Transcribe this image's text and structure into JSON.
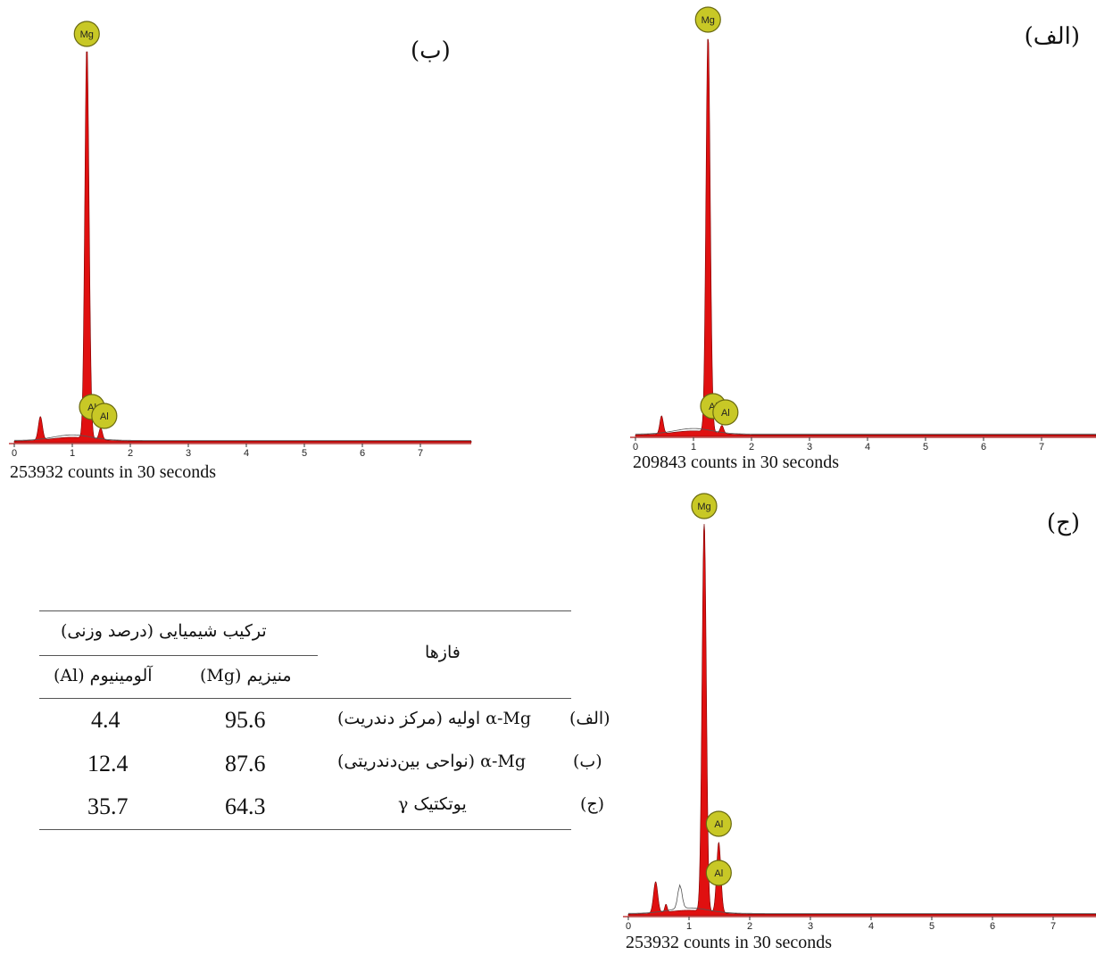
{
  "chart_data": [
    {
      "type": "line",
      "panel_label": "(الف)",
      "caption": "209843 counts  in  30 seconds",
      "x_ticks": [
        "0",
        "1",
        "2",
        "3",
        "4",
        "5",
        "6",
        "7"
      ],
      "xlim": [
        0,
        7.8
      ],
      "peaks": [
        {
          "x": 0.45,
          "h": 0.045,
          "w": 0.03
        },
        {
          "x": 1.25,
          "h": 1.0,
          "w": 0.035
        },
        {
          "x": 1.3,
          "h": 0.07,
          "w": 0.03
        },
        {
          "x": 1.49,
          "h": 0.02,
          "w": 0.03
        }
      ],
      "markers": [
        {
          "label": "Mg",
          "x": 1.25
        },
        {
          "label": "Al",
          "x": 1.4
        },
        {
          "label": "Al",
          "x": 1.49
        }
      ]
    },
    {
      "type": "line",
      "panel_label": "(ب)",
      "caption": "253932 counts  in  30 seconds",
      "x_ticks": [
        "0",
        "1",
        "2",
        "3",
        "4",
        "5",
        "6",
        "7"
      ],
      "xlim": [
        0,
        7.8
      ],
      "peaks": [
        {
          "x": 0.45,
          "h": 0.06,
          "w": 0.035
        },
        {
          "x": 1.25,
          "h": 1.0,
          "w": 0.035
        },
        {
          "x": 1.3,
          "h": 0.08,
          "w": 0.03
        },
        {
          "x": 1.49,
          "h": 0.03,
          "w": 0.03
        }
      ],
      "markers": [
        {
          "label": "Mg",
          "x": 1.25
        },
        {
          "label": "Al",
          "x": 1.4
        },
        {
          "label": "Al",
          "x": 1.49
        }
      ]
    },
    {
      "type": "line",
      "panel_label": "(ج)",
      "caption": "253932 counts  in  30 seconds",
      "x_ticks": [
        "0",
        "1",
        "2",
        "3",
        "4",
        "5",
        "6",
        "7"
      ],
      "xlim": [
        0,
        7.8
      ],
      "peaks": [
        {
          "x": 0.45,
          "h": 0.08,
          "w": 0.035
        },
        {
          "x": 0.62,
          "h": 0.02,
          "w": 0.02
        },
        {
          "x": 1.25,
          "h": 1.0,
          "w": 0.035
        },
        {
          "x": 1.49,
          "h": 0.18,
          "w": 0.035
        }
      ],
      "markers": [
        {
          "label": "Mg",
          "x": 1.25
        },
        {
          "label": "Al",
          "x": 1.49
        },
        {
          "label": "Al",
          "x": 1.49
        }
      ]
    }
  ],
  "table": {
    "header_phases": "فازها",
    "header_composition": "ترکیب شیمیایی (درصد وزنی)",
    "header_mg": "منیزیم (Mg)",
    "header_al": "آلومینیوم (Al)",
    "rows": [
      {
        "key": "(الف)",
        "phase": "α-Mg اولیه (مرکز دندریت)",
        "mg": "95.6",
        "al": "4.4"
      },
      {
        "key": "(ب)",
        "phase": "α-Mg (نواحی بین‌دندریتی)",
        "mg": "87.6",
        "al": "12.4"
      },
      {
        "key": "(ج)",
        "phase": "یوتکتیک γ",
        "mg": "64.3",
        "al": "35.7"
      }
    ]
  },
  "colors": {
    "fill": "#e01010",
    "badge": "#c8c826",
    "badge_edge": "#6a6a10",
    "axis": "#c04040"
  }
}
